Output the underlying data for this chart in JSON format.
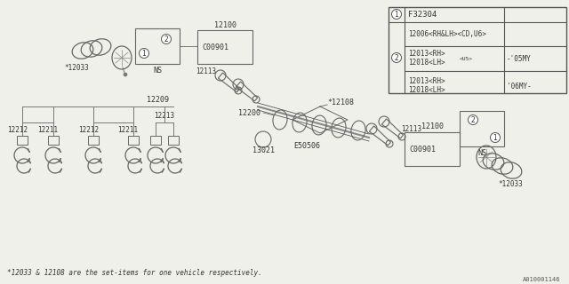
{
  "bg_color": "#f0f0eb",
  "line_color": "#777777",
  "text_color": "#333333",
  "title_footnote": "*12033 & 12108 are the set-items for one vehicle respectively.",
  "diagram_id": "A010001146",
  "table": {
    "part1": "F32304",
    "row1_part": "12006<RH&LH><CD,U6>",
    "row2_line1": "12013<RH>",
    "row2_line2": "12018<LH>",
    "row2_sub": "<U5>",
    "row2_year": "-'05MY",
    "row3_line1": "12013<RH>",
    "row3_line2": "12018<LH>",
    "row3_year": "'06MY-"
  },
  "labels": {
    "top_left_set": "*12033",
    "top_label_ns": "NS",
    "label_12100_top": "12100",
    "label_c00901_top": "C00901",
    "label_12113_top": "12113",
    "label_12108": "*12108",
    "label_12209": "12209",
    "label_12211a": "12211",
    "label_12212a": "12212",
    "label_12211b": "12211",
    "label_12212b": "12212",
    "label_12213": "12213",
    "label_12200": "12200",
    "label_13021": "13021",
    "label_e50506": "E50506",
    "label_c00901_bot": "C00901",
    "label_12100_bot": "12100",
    "label_12113_bot": "12113",
    "label_ns_bot": "NS",
    "bot_right_set": "*12033"
  }
}
